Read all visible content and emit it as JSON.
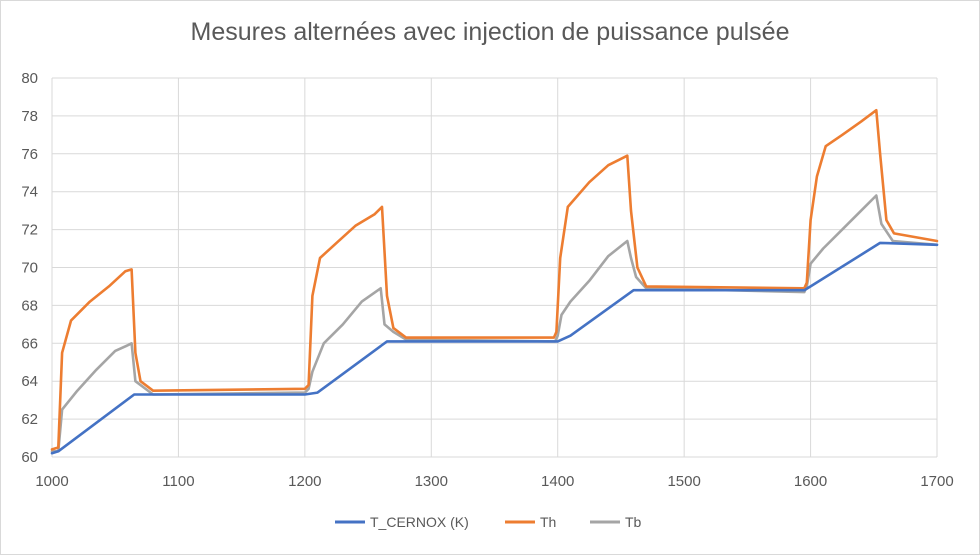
{
  "chart_data": {
    "type": "line",
    "title": "Mesures alternées avec injection de puissance pulsée",
    "xlabel": "",
    "ylabel": "",
    "xlim": [
      1000,
      1700
    ],
    "ylim": [
      60,
      80
    ],
    "x_ticks": [
      1000,
      1100,
      1200,
      1300,
      1400,
      1500,
      1600,
      1700
    ],
    "y_ticks": [
      60,
      62,
      64,
      66,
      68,
      70,
      72,
      74,
      76,
      78,
      80
    ],
    "grid": true,
    "legend_position": "bottom",
    "series": [
      {
        "name": "T_CERNOX (K)",
        "color": "#4472C4",
        "points": [
          [
            1000,
            60.2
          ],
          [
            1005,
            60.3
          ],
          [
            1065,
            63.3
          ],
          [
            1200,
            63.3
          ],
          [
            1210,
            63.4
          ],
          [
            1265,
            66.1
          ],
          [
            1400,
            66.1
          ],
          [
            1410,
            66.4
          ],
          [
            1460,
            68.8
          ],
          [
            1595,
            68.8
          ],
          [
            1600,
            69.0
          ],
          [
            1655,
            71.3
          ],
          [
            1700,
            71.2
          ]
        ]
      },
      {
        "name": "Th",
        "color": "#ED7D31",
        "points": [
          [
            1000,
            60.4
          ],
          [
            1005,
            60.5
          ],
          [
            1008,
            65.5
          ],
          [
            1015,
            67.2
          ],
          [
            1030,
            68.2
          ],
          [
            1045,
            69.0
          ],
          [
            1058,
            69.8
          ],
          [
            1063,
            69.9
          ],
          [
            1066,
            65.5
          ],
          [
            1070,
            64.0
          ],
          [
            1080,
            63.5
          ],
          [
            1200,
            63.6
          ],
          [
            1203,
            63.8
          ],
          [
            1206,
            68.5
          ],
          [
            1212,
            70.5
          ],
          [
            1225,
            71.3
          ],
          [
            1240,
            72.2
          ],
          [
            1255,
            72.8
          ],
          [
            1261,
            73.2
          ],
          [
            1265,
            68.5
          ],
          [
            1270,
            66.8
          ],
          [
            1280,
            66.3
          ],
          [
            1397,
            66.3
          ],
          [
            1399,
            66.6
          ],
          [
            1402,
            70.5
          ],
          [
            1408,
            73.2
          ],
          [
            1425,
            74.5
          ],
          [
            1440,
            75.4
          ],
          [
            1455,
            75.9
          ],
          [
            1458,
            73.0
          ],
          [
            1463,
            70.0
          ],
          [
            1470,
            69.0
          ],
          [
            1595,
            68.9
          ],
          [
            1597,
            69.2
          ],
          [
            1600,
            72.5
          ],
          [
            1605,
            74.8
          ],
          [
            1612,
            76.4
          ],
          [
            1625,
            77.0
          ],
          [
            1640,
            77.7
          ],
          [
            1652,
            78.3
          ],
          [
            1655,
            76.0
          ],
          [
            1660,
            72.5
          ],
          [
            1666,
            71.8
          ],
          [
            1700,
            71.4
          ]
        ]
      },
      {
        "name": "Tb",
        "color": "#A5A5A5",
        "points": [
          [
            1000,
            60.3
          ],
          [
            1005,
            60.3
          ],
          [
            1008,
            62.5
          ],
          [
            1020,
            63.5
          ],
          [
            1035,
            64.6
          ],
          [
            1050,
            65.6
          ],
          [
            1060,
            65.9
          ],
          [
            1063,
            66.0
          ],
          [
            1066,
            64.0
          ],
          [
            1080,
            63.3
          ],
          [
            1200,
            63.4
          ],
          [
            1203,
            63.6
          ],
          [
            1206,
            64.5
          ],
          [
            1215,
            66.0
          ],
          [
            1230,
            67.0
          ],
          [
            1245,
            68.2
          ],
          [
            1260,
            68.9
          ],
          [
            1263,
            67.0
          ],
          [
            1270,
            66.6
          ],
          [
            1280,
            66.2
          ],
          [
            1398,
            66.1
          ],
          [
            1400,
            66.4
          ],
          [
            1403,
            67.5
          ],
          [
            1410,
            68.2
          ],
          [
            1425,
            69.3
          ],
          [
            1440,
            70.6
          ],
          [
            1455,
            71.4
          ],
          [
            1458,
            70.5
          ],
          [
            1462,
            69.5
          ],
          [
            1470,
            68.9
          ],
          [
            1595,
            68.7
          ],
          [
            1597,
            69.0
          ],
          [
            1600,
            70.2
          ],
          [
            1610,
            71.0
          ],
          [
            1625,
            72.0
          ],
          [
            1640,
            73.0
          ],
          [
            1652,
            73.8
          ],
          [
            1656,
            72.3
          ],
          [
            1665,
            71.4
          ],
          [
            1700,
            71.2
          ]
        ]
      }
    ]
  }
}
